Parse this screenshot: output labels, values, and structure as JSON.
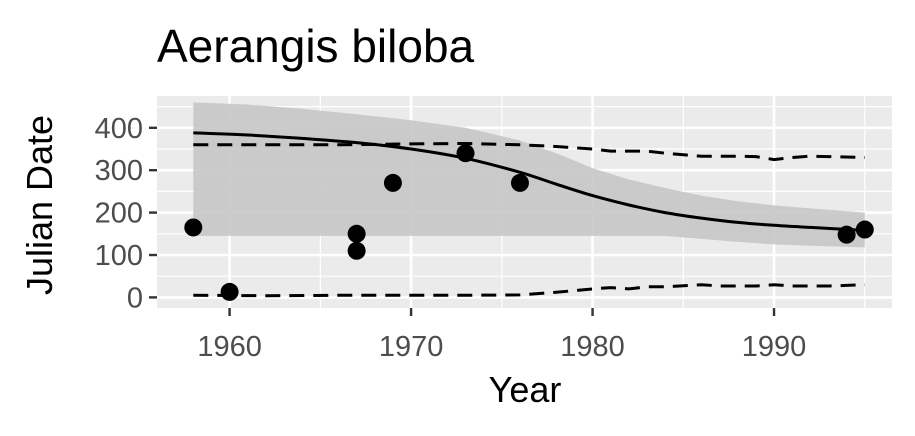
{
  "chart_data": {
    "type": "scatter",
    "title": "Aerangis biloba",
    "xlabel": "Year",
    "ylabel": "Julian Date",
    "xlim": [
      1956,
      1996.5
    ],
    "ylim": [
      -25,
      475
    ],
    "x_ticks": [
      1960,
      1970,
      1980,
      1990
    ],
    "y_ticks": [
      0,
      100,
      200,
      300,
      400
    ],
    "x_tick_labels": [
      "1960",
      "1970",
      "1980",
      "1990"
    ],
    "y_tick_labels": [
      "0",
      "100",
      "200",
      "300",
      "400"
    ],
    "grid": true,
    "legend": "none",
    "colors": {
      "panel": "#ebebeb",
      "grid": "#ffffff",
      "points": "#000000",
      "ribbon": "#c7c7c7",
      "lines": "#000000",
      "tick_text": "#4d4d4d",
      "tick_mark": "#333333"
    },
    "points": [
      {
        "x": 1958,
        "y": 165
      },
      {
        "x": 1960,
        "y": 13
      },
      {
        "x": 1967,
        "y": 150
      },
      {
        "x": 1967,
        "y": 110
      },
      {
        "x": 1969,
        "y": 270
      },
      {
        "x": 1973,
        "y": 340
      },
      {
        "x": 1976,
        "y": 270
      },
      {
        "x": 1994,
        "y": 148
      },
      {
        "x": 1995,
        "y": 160
      }
    ],
    "fit_line": {
      "x": [
        1958,
        1961,
        1964,
        1967,
        1970,
        1973,
        1976,
        1978,
        1980,
        1982,
        1984,
        1986,
        1988,
        1990,
        1992,
        1995
      ],
      "y": [
        388,
        383,
        375,
        365,
        350,
        328,
        295,
        267,
        240,
        218,
        200,
        187,
        177,
        170,
        165,
        158
      ]
    },
    "ribbon": {
      "x": [
        1958,
        1961,
        1964,
        1967,
        1970,
        1973,
        1976,
        1978,
        1980,
        1982,
        1984,
        1986,
        1988,
        1990,
        1992,
        1995
      ],
      "upper": [
        460,
        455,
        445,
        432,
        418,
        400,
        370,
        340,
        305,
        278,
        258,
        240,
        227,
        217,
        210,
        200
      ],
      "lower": [
        145,
        145,
        145,
        145,
        145,
        145,
        145,
        145,
        145,
        145,
        145,
        138,
        131,
        125,
        122,
        118
      ]
    },
    "upper_dashed": {
      "x": [
        1958,
        1962,
        1966,
        1970,
        1973,
        1976,
        1978,
        1980,
        1981,
        1983,
        1984,
        1986,
        1988,
        1989,
        1990,
        1991,
        1992,
        1993,
        1995
      ],
      "y": [
        360,
        360,
        360,
        362,
        363,
        360,
        356,
        350,
        345,
        345,
        340,
        333,
        333,
        332,
        325,
        330,
        333,
        332,
        330
      ]
    },
    "lower_dashed": {
      "x": [
        1958,
        1962,
        1966,
        1970,
        1973,
        1976,
        1978,
        1980,
        1981,
        1982,
        1983,
        1984,
        1986,
        1987,
        1988,
        1989,
        1990,
        1991,
        1993,
        1995
      ],
      "y": [
        5,
        4,
        5,
        5,
        5,
        6,
        12,
        20,
        23,
        20,
        25,
        25,
        30,
        27,
        27,
        27,
        30,
        27,
        27,
        30
      ]
    }
  }
}
